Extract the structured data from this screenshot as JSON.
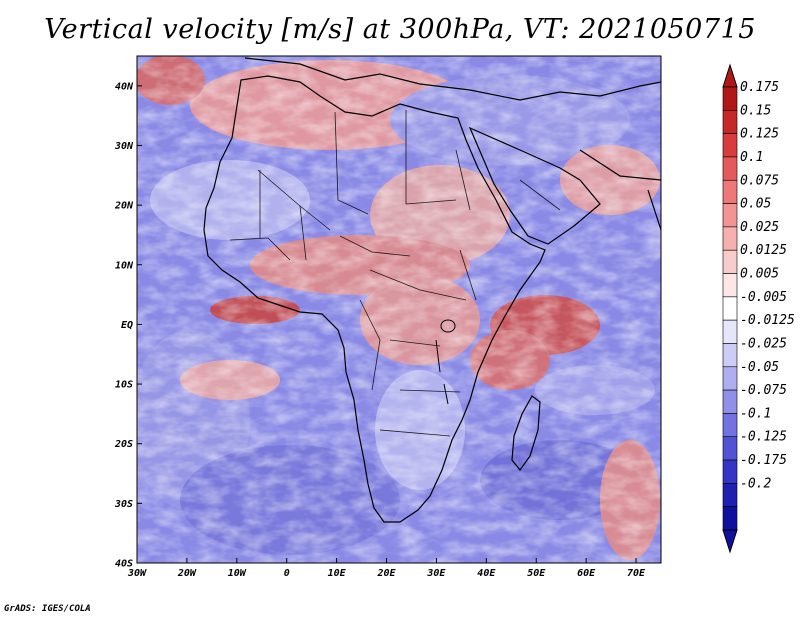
{
  "title": "Vertical velocity [m/s] at 300hPa, VT: 2021050715",
  "credit": "GrADS: IGES/COLA",
  "map": {
    "lon_range": [
      -30,
      75
    ],
    "lat_range": [
      -40,
      45
    ],
    "lon_ticks": [
      "30W",
      "20W",
      "10W",
      "0",
      "10E",
      "20E",
      "30E",
      "40E",
      "50E",
      "60E",
      "70E"
    ],
    "lon_tick_values": [
      -30,
      -20,
      -10,
      0,
      10,
      20,
      30,
      40,
      50,
      60,
      70
    ],
    "lat_ticks": [
      "40N",
      "30N",
      "20N",
      "10N",
      "EQ",
      "10S",
      "20S",
      "30S",
      "40S"
    ],
    "lat_tick_values": [
      40,
      30,
      20,
      10,
      0,
      -10,
      -20,
      -30,
      -40
    ],
    "field": "vertical velocity",
    "level_hpa": 300,
    "coastlines": true,
    "country_borders": true
  },
  "colorbar": {
    "labels": [
      "0.175",
      "0.15",
      "0.125",
      "0.1",
      "0.075",
      "0.05",
      "0.025",
      "0.0125",
      "0.005",
      "-0.005",
      "-0.0125",
      "-0.025",
      "-0.05",
      "-0.075",
      "-0.1",
      "-0.125",
      "-0.175",
      "-0.2"
    ],
    "colors": [
      "#b01818",
      "#c62828",
      "#d83c3c",
      "#e45a5a",
      "#ec7878",
      "#f29494",
      "#f6b0b0",
      "#f9cccc",
      "#fce6e6",
      "#ffffff",
      "#e6e6fb",
      "#ccccf6",
      "#aeaef0",
      "#9090ea",
      "#7272e2",
      "#5252d6",
      "#3434c6",
      "#2020b0",
      "#1010a0"
    ],
    "extend_top_color": "#b01818",
    "extend_bottom_color": "#1010a0"
  }
}
